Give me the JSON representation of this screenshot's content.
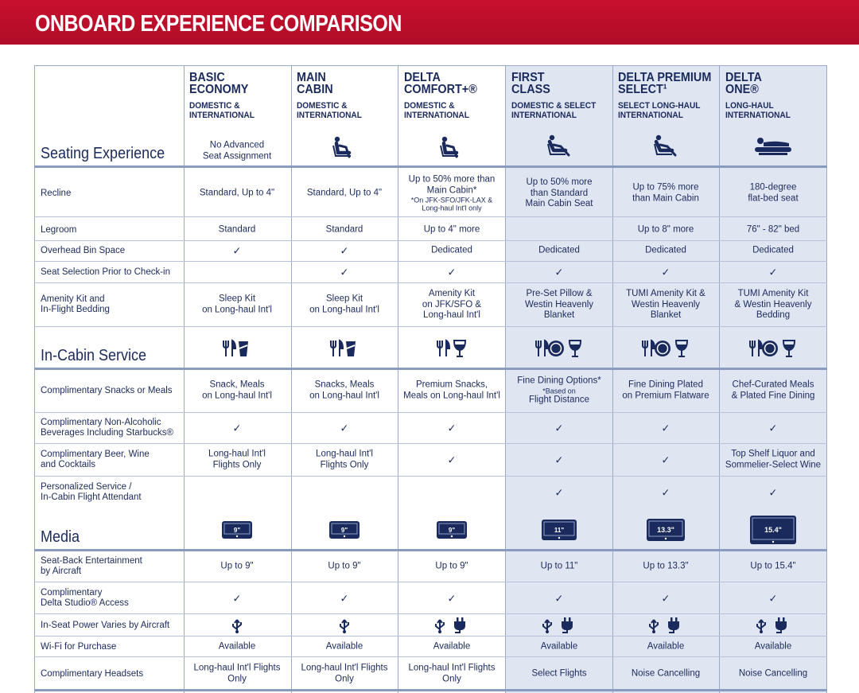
{
  "title": "ONBOARD EXPERIENCE COMPARISON",
  "columns": [
    {
      "title1": "BASIC",
      "title2": "ECONOMY",
      "sub1": "DOMESTIC &",
      "sub2": "INTERNATIONAL"
    },
    {
      "title1": "MAIN",
      "title2": "CABIN",
      "sub1": "DOMESTIC &",
      "sub2": "INTERNATIONAL"
    },
    {
      "title1": "DELTA",
      "title2": "COMFORT+®",
      "sub1": "DOMESTIC &",
      "sub2": "INTERNATIONAL"
    },
    {
      "title1": "FIRST",
      "title2": "CLASS",
      "sub1": "DOMESTIC & SELECT",
      "sub2": "INTERNATIONAL"
    },
    {
      "title1": "DELTA PREMIUM",
      "title2": "SELECT¹",
      "sub1": "SELECT LONG-HAUL",
      "sub2": "INTERNATIONAL"
    },
    {
      "title1": "DELTA",
      "title2": "ONE®",
      "sub1": "LONG-HAUL",
      "sub2": "INTERNATIONAL"
    }
  ],
  "sections": {
    "seating": "Seating Experience",
    "service": "In-Cabin Service",
    "media": "Media"
  },
  "seat_basic_note": {
    "l1": "No Advanced",
    "l2": "Seat Assignment"
  },
  "screens": [
    "9\"",
    "9\"",
    "9\"",
    "11\"",
    "13.3\"",
    "15.4\""
  ],
  "rows": [
    {
      "label": [
        "Recline"
      ],
      "cells": [
        [
          "Standard, Up to 4\""
        ],
        [
          "Standard, Up to 4\""
        ],
        [
          "Up to 50% more than",
          "Main Cabin*",
          "~*On JFK-SFO/JFK-LAX &",
          "~Long-haul Int'l only"
        ],
        [
          "Up to 50% more",
          "than Standard",
          "Main Cabin Seat"
        ],
        [
          "Up to 75% more",
          "than Main Cabin"
        ],
        [
          "180-degree",
          "flat-bed seat"
        ]
      ]
    },
    {
      "label": [
        "Legroom"
      ],
      "cells": [
        [
          "Standard"
        ],
        [
          "Standard"
        ],
        [
          "Up to 4\" more"
        ],
        [],
        [
          "Up to 8\" more"
        ],
        [
          "76\" - 82\" bed"
        ]
      ]
    },
    {
      "label": [
        "Overhead Bin Space"
      ],
      "cells": [
        [
          "✓"
        ],
        [
          "✓"
        ],
        [
          "Dedicated"
        ],
        [
          "Dedicated"
        ],
        [
          "Dedicated"
        ],
        [
          "Dedicated"
        ]
      ]
    },
    {
      "label": [
        "Seat Selection Prior to Check-in"
      ],
      "cells": [
        [],
        [
          "✓"
        ],
        [
          "✓"
        ],
        [
          "✓"
        ],
        [
          "✓"
        ],
        [
          "✓"
        ]
      ]
    },
    {
      "label": [
        "Amenity Kit and",
        "In-Flight Bedding"
      ],
      "cells": [
        [
          "Sleep Kit",
          "on Long-haul Int'l"
        ],
        [
          "Sleep Kit",
          "on Long-haul Int'l"
        ],
        [
          "Amenity Kit",
          "on JFK/SFO &",
          "Long-haul Int'l"
        ],
        [
          "Pre-Set Pillow &",
          "Westin Heavenly",
          "Blanket"
        ],
        [
          "TUMI Amenity Kit &",
          "Westin Heavenly",
          "Blanket"
        ],
        [
          "TUMI Amenity Kit",
          "& Westin Heavenly",
          "Bedding"
        ]
      ]
    },
    {
      "label": [
        "Complimentary Snacks or Meals"
      ],
      "cells": [
        [
          "Snack, Meals",
          "on Long-haul Int'l"
        ],
        [
          "Snacks, Meals",
          "on Long-haul Int'l"
        ],
        [
          "Premium Snacks,",
          "Meals on Long-haul Int'l"
        ],
        [
          "Fine Dining Options*",
          "~*Based on",
          "Flight Distance"
        ],
        [
          "Fine Dining Plated",
          "on Premium Flatware"
        ],
        [
          "Chef-Curated Meals",
          "& Plated Fine Dining"
        ]
      ]
    },
    {
      "label": [
        "Complimentary Non-Alcoholic",
        "Beverages Including Starbucks®"
      ],
      "cells": [
        [
          "✓"
        ],
        [
          "✓"
        ],
        [
          "✓"
        ],
        [
          "✓"
        ],
        [
          "✓"
        ],
        [
          "✓"
        ]
      ]
    },
    {
      "label": [
        "Complimentary Beer, Wine",
        "and Cocktails"
      ],
      "cells": [
        [
          "Long-haul Int'l",
          "Flights Only"
        ],
        [
          "Long-haul Int'l",
          "Flights Only"
        ],
        [
          "✓"
        ],
        [
          "✓"
        ],
        [
          "✓"
        ],
        [
          "Top Shelf Liquor and",
          "Sommelier-Select Wine"
        ]
      ]
    },
    {
      "label": [
        "Personalized Service /",
        "In-Cabin Flight Attendant"
      ],
      "cells": [
        [],
        [],
        [],
        [
          "✓"
        ],
        [
          "✓"
        ],
        [
          "✓"
        ]
      ]
    },
    {
      "label": [
        "Seat-Back Entertainment",
        "by Aircraft"
      ],
      "cells": [
        [
          "Up to 9\""
        ],
        [
          "Up to 9\""
        ],
        [
          "Up to 9\""
        ],
        [
          "Up to 11\""
        ],
        [
          "Up to 13.3\""
        ],
        [
          "Up to 15.4\""
        ]
      ]
    },
    {
      "label": [
        "Complimentary",
        "Delta Studio® Access"
      ],
      "cells": [
        [
          "✓"
        ],
        [
          "✓"
        ],
        [
          "✓"
        ],
        [
          "✓"
        ],
        [
          "✓"
        ],
        [
          "✓"
        ]
      ]
    },
    {
      "label": [
        "In-Seat Power Varies by Aircraft"
      ],
      "cells": [
        [
          "usb-icon"
        ],
        [
          "usb-icon"
        ],
        [
          "usb-plug-icon"
        ],
        [
          "usb-plug-icon"
        ],
        [
          "usb-plug-icon"
        ],
        [
          "usb-plug-icon"
        ]
      ]
    },
    {
      "label": [
        "Wi-Fi for Purchase"
      ],
      "cells": [
        [
          "Available"
        ],
        [
          "Available"
        ],
        [
          "Available"
        ],
        [
          "Available"
        ],
        [
          "Available"
        ],
        [
          "Available"
        ]
      ]
    },
    {
      "label": [
        "Complimentary Headsets"
      ],
      "cells": [
        [
          "Long-haul Int'l Flights",
          "Only"
        ],
        [
          "Long-haul Int'l Flights",
          "Only"
        ],
        [
          "Long-haul Int'l Flights",
          "Only"
        ],
        [
          "Select Flights"
        ],
        [
          "Noise Cancelling"
        ],
        [
          "Noise Cancelling"
        ]
      ]
    }
  ]
}
